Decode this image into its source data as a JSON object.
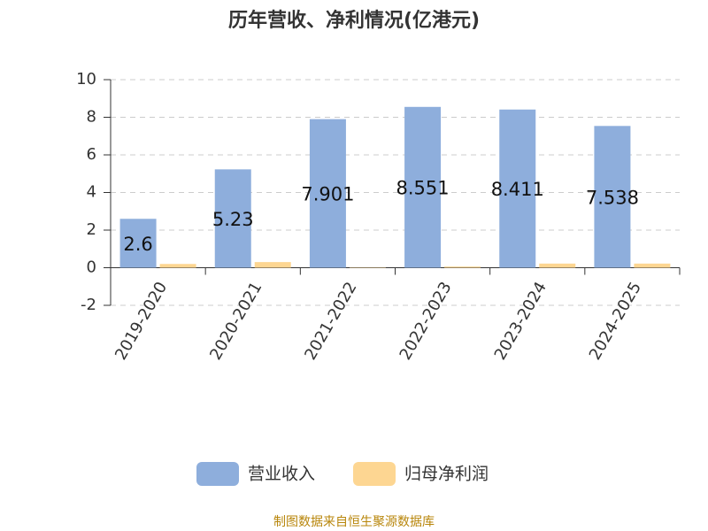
{
  "chart_data": {
    "type": "bar",
    "title": "历年营收、净利情况(亿港元)",
    "categories": [
      "2019-2020",
      "2020-2021",
      "2021-2022",
      "2022-2023",
      "2023-2024",
      "2024-2025"
    ],
    "series": [
      {
        "name": "营业收入",
        "color": "#8eaedc",
        "values": [
          2.6,
          5.23,
          7.901,
          8.551,
          8.411,
          7.538
        ]
      },
      {
        "name": "归母净利润",
        "color": "#fdd692",
        "values": [
          0.2,
          0.3,
          0.02,
          0.06,
          0.22,
          0.22
        ]
      }
    ],
    "ylim": [
      -2,
      10
    ],
    "yticks": [
      -2,
      0,
      2,
      4,
      6,
      8,
      10
    ],
    "grid": true,
    "source": "制图数据来自恒生聚源数据库"
  }
}
